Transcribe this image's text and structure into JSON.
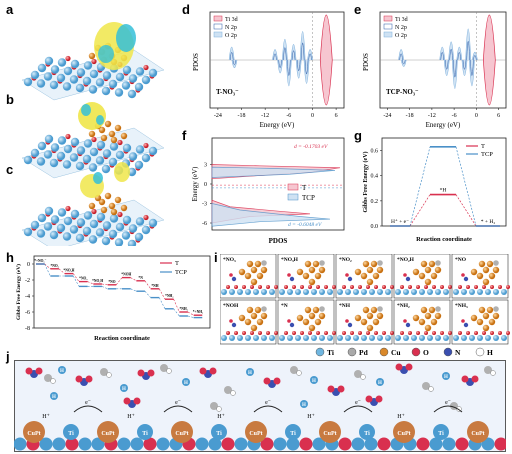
{
  "panel_labels": {
    "a": "a",
    "b": "b",
    "c": "c",
    "d": "d",
    "e": "e",
    "f": "f",
    "g": "g",
    "h": "h",
    "i": "i",
    "j": "j"
  },
  "pdos_d": {
    "ylabel": "PDOS",
    "xlabel": "Energy (eV)",
    "tag": "T-NO₃⁻",
    "legend": [
      "Ti 3d",
      "N 2p",
      "O 2p"
    ],
    "xticks": [
      "-24",
      "-18",
      "-12",
      "-6",
      "0",
      "6"
    ]
  },
  "pdos_e": {
    "ylabel": "PDOS",
    "xlabel": "Energy (eV)",
    "tag": "TCP-NO₃⁻",
    "legend": [
      "Ti 3d",
      "N 2p",
      "O 2p"
    ],
    "xticks": [
      "-24",
      "-18",
      "-12",
      "-6",
      "0",
      "6"
    ]
  },
  "pdos_f": {
    "ylabel": "Energy (eV)",
    "xlabel": "PDOS",
    "legend": [
      "T",
      "TCP"
    ],
    "d_T": "d = -0.1703 eV",
    "d_TCP": "d = -0.6048 eV",
    "yticks": [
      "3",
      "0",
      "-3",
      "-6"
    ]
  },
  "colors": {
    "T": "#d9304f",
    "TCP": "#4a90c8",
    "N2p": "#2a5aa8",
    "O2p": "#7fb0dc"
  },
  "chart_data": [
    {
      "type": "line",
      "title": "",
      "xlabel": "Reaction coordinate",
      "ylabel": "Gibbs Free Energy (eV)",
      "ylim": [
        0,
        0.7
      ],
      "yticks": [
        0.0,
        0.2,
        0.4,
        0.6
      ],
      "states": [
        "H⁺ + e⁻",
        "*H",
        "* + H₂"
      ],
      "series": [
        {
          "name": "T",
          "values": [
            0,
            0.25,
            0
          ]
        },
        {
          "name": "TCP",
          "values": [
            0,
            0.63,
            0
          ]
        }
      ],
      "legend": "top-right"
    },
    {
      "type": "line",
      "title": "",
      "xlabel": "Reaction coordinate",
      "ylabel": "Gibbs Free Energy (eV)",
      "ylim": [
        -8,
        1
      ],
      "yticks": [
        0,
        -2,
        -4,
        -6,
        -8
      ],
      "states": [
        "*+NO₃⁻",
        "*NO₃",
        "*NO₃H",
        "*NO₂",
        "*NO₂H",
        "*NO",
        "*NOH",
        "*N",
        "*NH",
        "*NH₂",
        "*NH₃",
        "*+NH₃"
      ],
      "series": [
        {
          "name": "T",
          "values": [
            0,
            -0.6,
            -1.2,
            -2.2,
            -2.5,
            -2.6,
            -1.7,
            -2.1,
            -3.1,
            -4.4,
            -6.0,
            -6.4
          ]
        },
        {
          "name": "TCP",
          "values": [
            0,
            -1.5,
            -1.5,
            -2.8,
            -2.8,
            -3.1,
            -3.1,
            -3.4,
            -4.2,
            -5.6,
            -6.5,
            -6.7
          ]
        }
      ],
      "legend": "top-right"
    }
  ],
  "panel_i": {
    "cells": [
      "*NO₃",
      "*NO₃H",
      "*NO₂",
      "*NO₂H",
      "*NO",
      "*NOH",
      "*N",
      "*NH",
      "*NH₂",
      "*NH₃"
    ]
  },
  "legend_atoms": {
    "items": [
      "Ti",
      "Pd",
      "Cu",
      "O",
      "N",
      "H"
    ],
    "colors": [
      "#6fb6e0",
      "#a9a9a9",
      "#d9882a",
      "#d9304f",
      "#3a4fb0",
      "#ffffff"
    ]
  },
  "scheme_j": {
    "substrate_labels": [
      "CuPt",
      "Ti",
      "CuPt",
      "Ti",
      "CuPt",
      "Ti",
      "CuPt",
      "Ti",
      "CuPt",
      "Ti",
      "CuPt",
      "Ti",
      "CuPt"
    ],
    "electron": "e⁻",
    "proton": "H⁺"
  }
}
